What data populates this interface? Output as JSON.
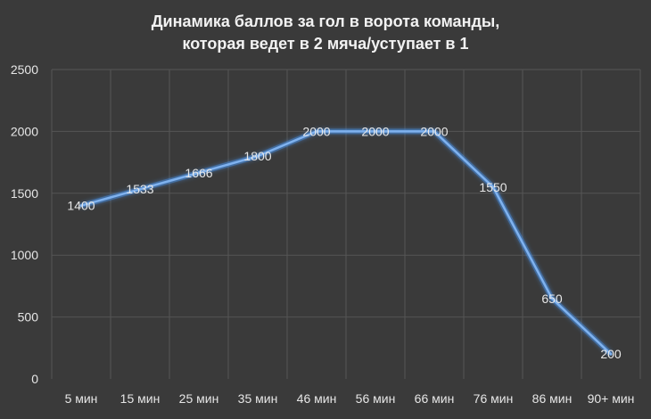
{
  "chart_data": {
    "type": "line",
    "title_lines": [
      "Динамика баллов за гол в ворота команды,",
      "которая ведет в 2 мяча/уступает в 1"
    ],
    "categories": [
      "5 мин",
      "15 мин",
      "25 мин",
      "35 мин",
      "46 мин",
      "56 мин",
      "66 мин",
      "76 мин",
      "86 мин",
      "90+ мин"
    ],
    "series": [
      {
        "values": [
          1400,
          1533,
          1666,
          1800,
          2000,
          2000,
          2000,
          1550,
          650,
          200
        ]
      }
    ],
    "data_labels": true,
    "ylim": [
      0,
      2500
    ],
    "yticks": [
      0,
      500,
      1000,
      1500,
      2000,
      2500
    ],
    "grid": true,
    "colors": {
      "background": "#3a3a3a",
      "line": "#7fb2ef",
      "glow": "#4a8fe0",
      "grid": "#555555",
      "text": "#e6e6e6"
    }
  }
}
